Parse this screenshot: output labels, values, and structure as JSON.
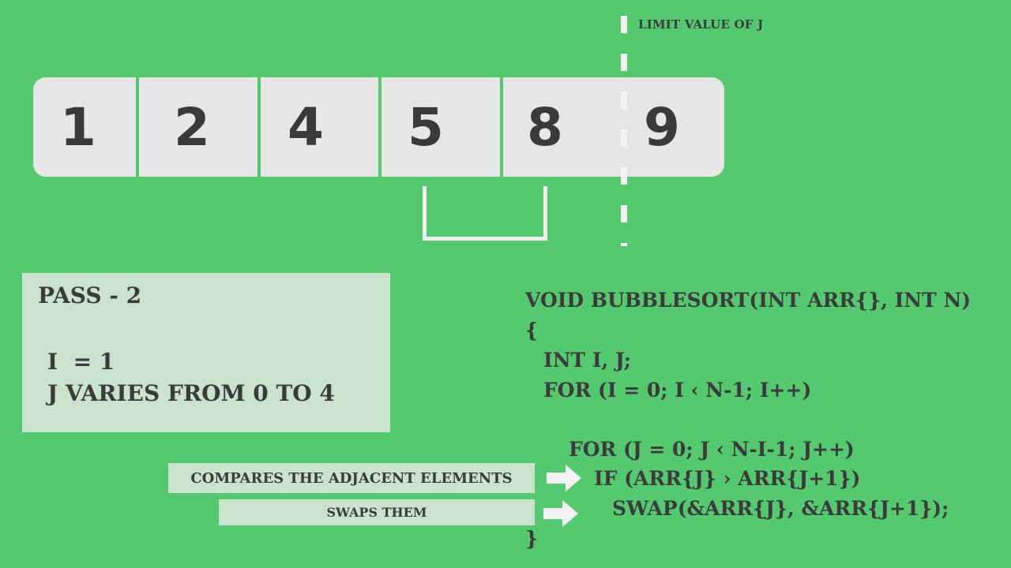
{
  "array": {
    "cells": [
      "1",
      "2",
      "4",
      "5",
      "8",
      "9"
    ]
  },
  "limit": {
    "label": "LIMIT VALUE OF J"
  },
  "pass": {
    "title": "PASS - 2",
    "i_line": "I  = 1",
    "j_line": "J VARIES FROM 0 TO 4"
  },
  "code": {
    "line1": "VOID BUBBLESORT(INT ARR{}, INT N)",
    "line2": "{",
    "line3": "INT I, J;",
    "line4": "FOR (I = 0; I ‹ N-1; I++)",
    "line5": "FOR (J = 0; J ‹ N-I-1; J++)",
    "line6": "IF (ARR{J} › ARR{J+1})",
    "line7": "SWAP(&ARR{J}, &ARR{J+1});",
    "line8": "}"
  },
  "annotations": {
    "compare": "COMPARES THE ADJACENT ELEMENTS",
    "swap": "SWAPS THEM"
  },
  "colors": {
    "background": "#55c970",
    "cell": "#e6e6e6",
    "panel": "#c9e3cf",
    "text": "#3b3b3b",
    "marker": "#efefef"
  }
}
